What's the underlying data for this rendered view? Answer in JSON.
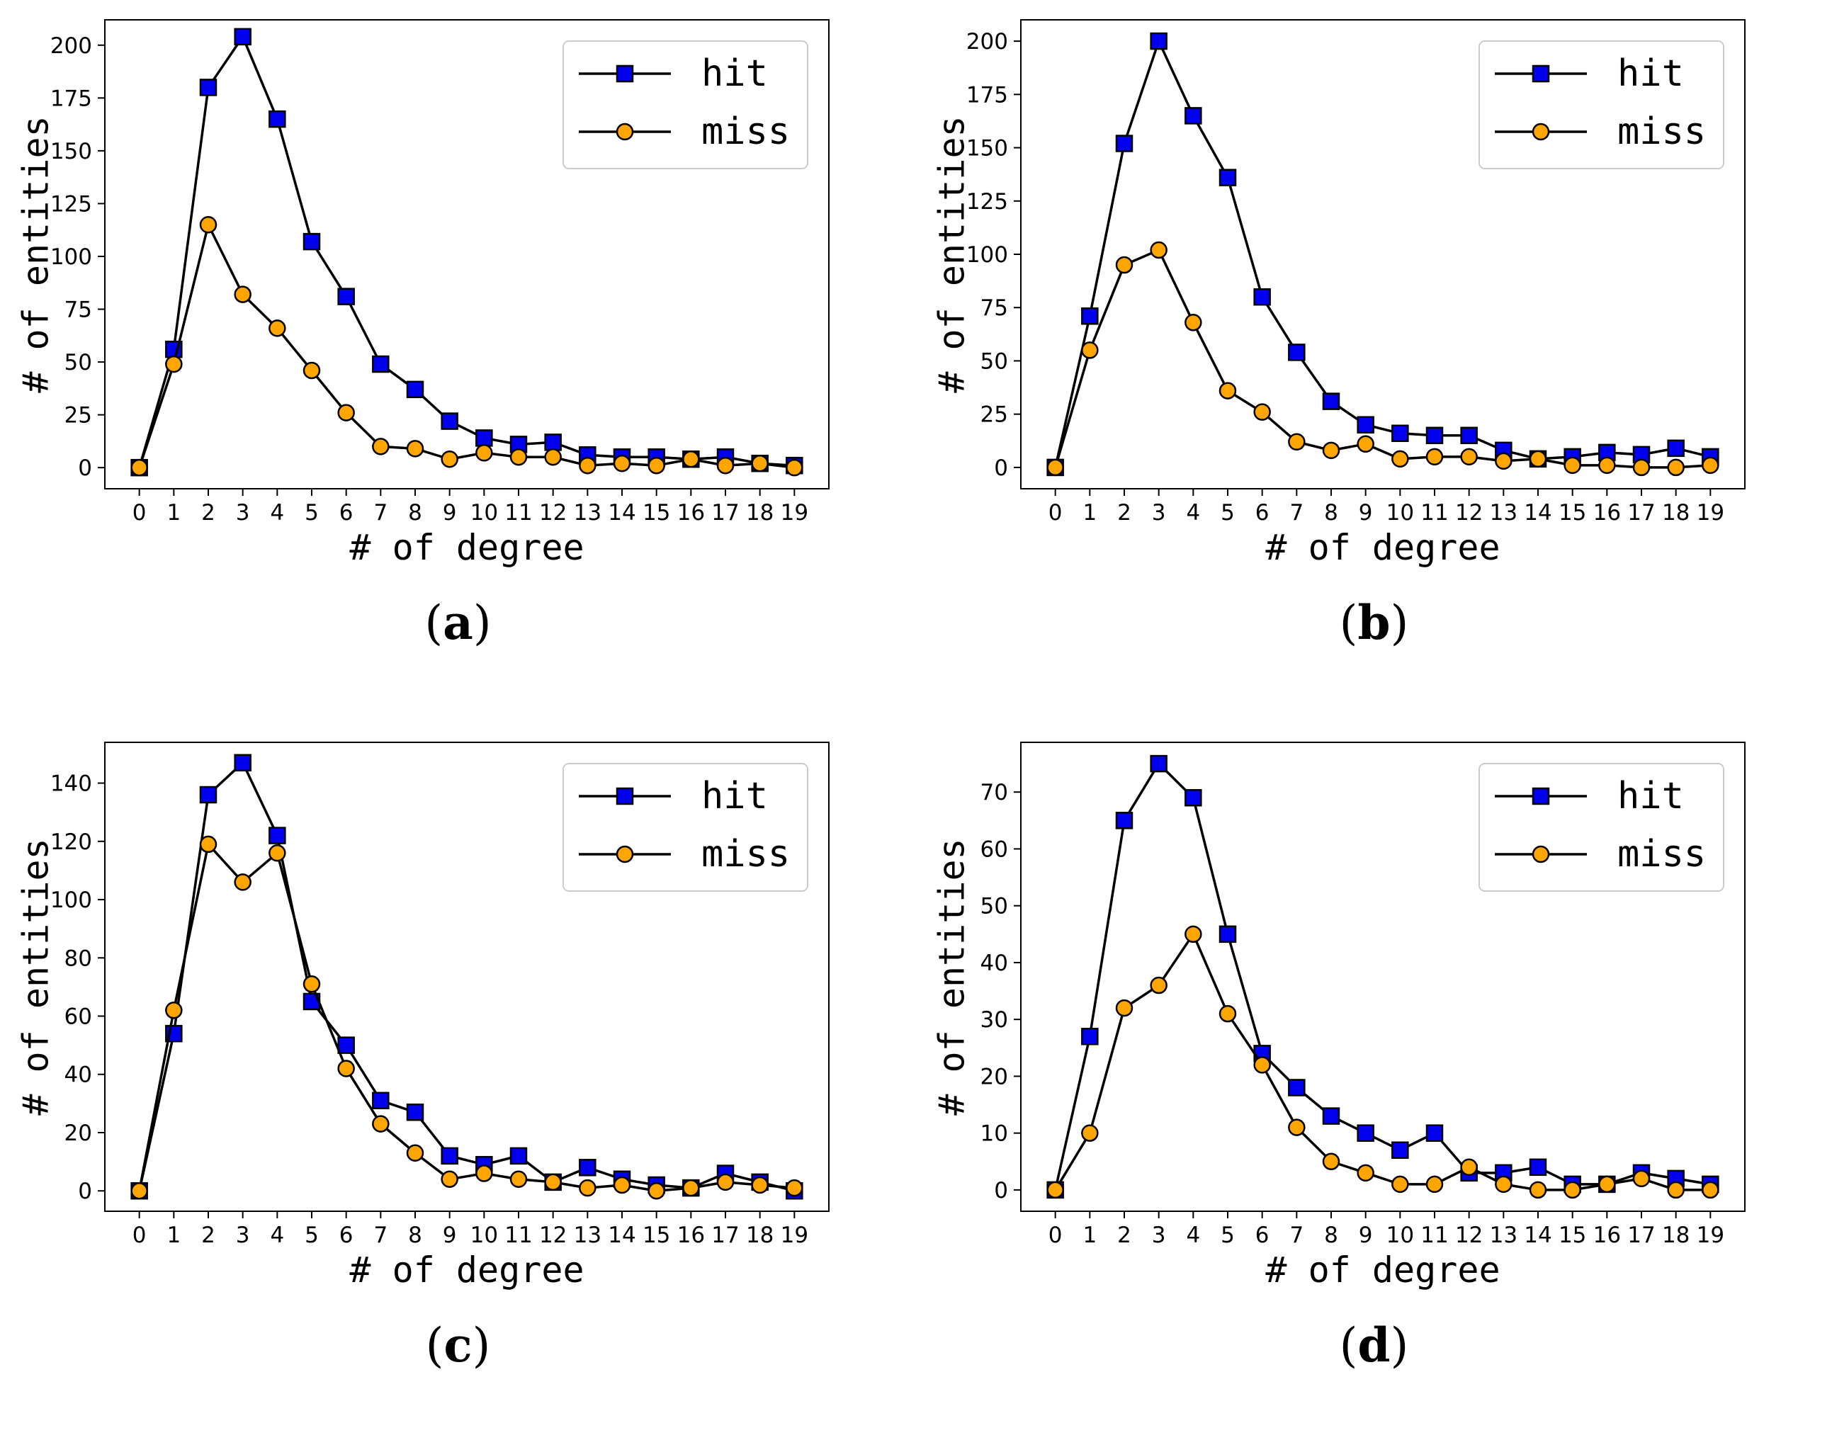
{
  "colors": {
    "hit": "#0000ee",
    "miss": "#ffa500",
    "line": "#000000"
  },
  "chart_data": [
    {
      "id": "a",
      "type": "line",
      "caption": "a",
      "x": [
        0,
        1,
        2,
        3,
        4,
        5,
        6,
        7,
        8,
        9,
        10,
        11,
        12,
        13,
        14,
        15,
        16,
        17,
        18,
        19
      ],
      "xlabel": "# of degree",
      "ylabel": "# of entities",
      "ylim": [
        -10,
        212
      ],
      "yticks": [
        0,
        25,
        50,
        75,
        100,
        125,
        150,
        175,
        200
      ],
      "legend": "top-right",
      "grid": false,
      "series": [
        {
          "name": "hit",
          "marker": "square",
          "values": [
            0,
            56,
            180,
            204,
            165,
            107,
            81,
            49,
            37,
            22,
            14,
            11,
            12,
            6,
            5,
            5,
            4,
            5,
            2,
            1
          ]
        },
        {
          "name": "miss",
          "marker": "circle",
          "values": [
            0,
            49,
            115,
            82,
            66,
            46,
            26,
            10,
            9,
            4,
            7,
            5,
            5,
            1,
            2,
            1,
            4,
            1,
            2,
            0
          ]
        }
      ]
    },
    {
      "id": "b",
      "type": "line",
      "caption": "b",
      "x": [
        0,
        1,
        2,
        3,
        4,
        5,
        6,
        7,
        8,
        9,
        10,
        11,
        12,
        13,
        14,
        15,
        16,
        17,
        18,
        19
      ],
      "xlabel": "# of degree",
      "ylabel": "# of entities",
      "ylim": [
        -10,
        210
      ],
      "yticks": [
        0,
        25,
        50,
        75,
        100,
        125,
        150,
        175,
        200
      ],
      "legend": "top-right",
      "grid": false,
      "series": [
        {
          "name": "hit",
          "marker": "square",
          "values": [
            0,
            71,
            152,
            200,
            165,
            136,
            80,
            54,
            31,
            20,
            16,
            15,
            15,
            8,
            4,
            5,
            7,
            6,
            9,
            5
          ]
        },
        {
          "name": "miss",
          "marker": "circle",
          "values": [
            0,
            55,
            95,
            102,
            68,
            36,
            26,
            12,
            8,
            11,
            4,
            5,
            5,
            3,
            4,
            1,
            1,
            0,
            0,
            1
          ]
        }
      ]
    },
    {
      "id": "c",
      "type": "line",
      "caption": "c",
      "x": [
        0,
        1,
        2,
        3,
        4,
        5,
        6,
        7,
        8,
        9,
        10,
        11,
        12,
        13,
        14,
        15,
        16,
        17,
        18,
        19
      ],
      "xlabel": "# of degree",
      "ylabel": "# of entities",
      "ylim": [
        -7,
        154
      ],
      "yticks": [
        0,
        20,
        40,
        60,
        80,
        100,
        120,
        140
      ],
      "legend": "top-right",
      "grid": false,
      "series": [
        {
          "name": "hit",
          "marker": "square",
          "values": [
            0,
            54,
            136,
            147,
            122,
            65,
            50,
            31,
            27,
            12,
            9,
            12,
            3,
            8,
            4,
            2,
            1,
            6,
            3,
            0
          ]
        },
        {
          "name": "miss",
          "marker": "circle",
          "values": [
            0,
            62,
            119,
            106,
            116,
            71,
            42,
            23,
            13,
            4,
            6,
            4,
            3,
            1,
            2,
            0,
            1,
            3,
            2,
            1
          ]
        }
      ]
    },
    {
      "id": "d",
      "type": "line",
      "caption": "d",
      "x": [
        0,
        1,
        2,
        3,
        4,
        5,
        6,
        7,
        8,
        9,
        10,
        11,
        12,
        13,
        14,
        15,
        16,
        17,
        18,
        19
      ],
      "xlabel": "# of degree",
      "ylabel": "# of entities",
      "ylim": [
        -3.75,
        78.75
      ],
      "yticks": [
        0,
        10,
        20,
        30,
        40,
        50,
        60,
        70
      ],
      "legend": "top-right",
      "grid": false,
      "series": [
        {
          "name": "hit",
          "marker": "square",
          "values": [
            0,
            27,
            65,
            75,
            69,
            45,
            24,
            18,
            13,
            10,
            7,
            10,
            3,
            3,
            4,
            1,
            1,
            3,
            2,
            1
          ]
        },
        {
          "name": "miss",
          "marker": "circle",
          "values": [
            0,
            10,
            32,
            36,
            45,
            31,
            22,
            11,
            5,
            3,
            1,
            1,
            4,
            1,
            0,
            0,
            1,
            2,
            0,
            0
          ]
        }
      ]
    }
  ]
}
